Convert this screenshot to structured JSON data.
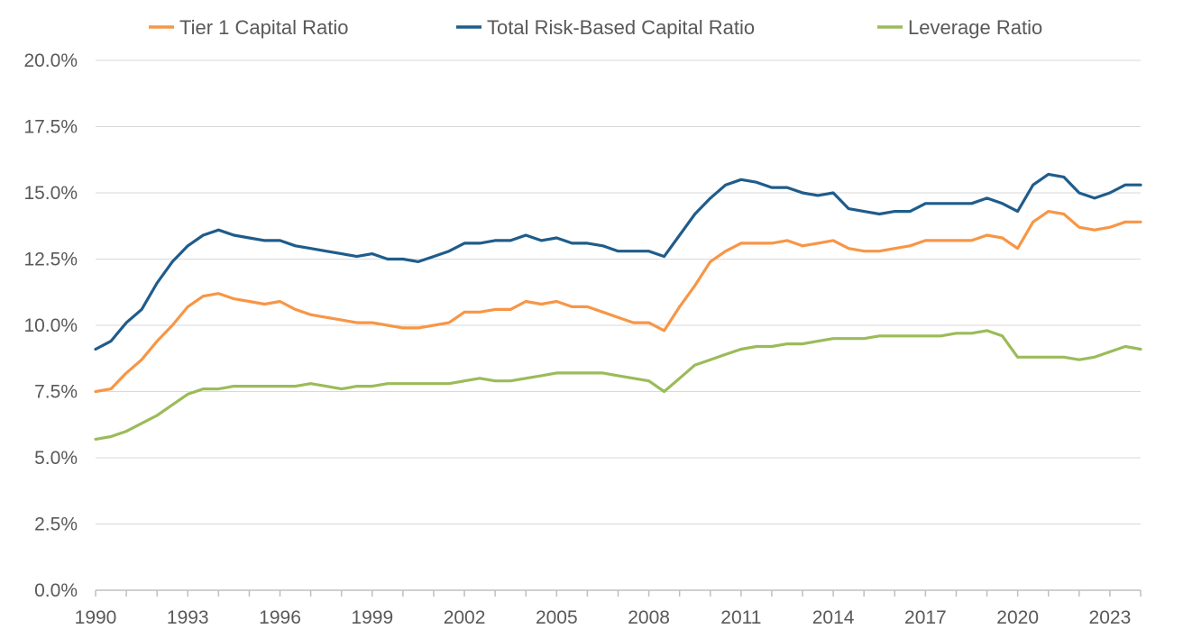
{
  "chart_data": {
    "type": "line",
    "title": "",
    "xlabel": "",
    "ylabel": "",
    "xlim": [
      1990,
      2024
    ],
    "ylim": [
      0,
      20
    ],
    "grid": true,
    "legend_position": "top",
    "y_ticks": [
      "0.0%",
      "2.5%",
      "5.0%",
      "7.5%",
      "10.0%",
      "12.5%",
      "15.0%",
      "17.5%",
      "20.0%"
    ],
    "y_tick_values": [
      0,
      2.5,
      5,
      7.5,
      10,
      12.5,
      15,
      17.5,
      20
    ],
    "x_ticks": [
      "1990",
      "1993",
      "1996",
      "1999",
      "2002",
      "2005",
      "2008",
      "2011",
      "2014",
      "2017",
      "2020",
      "2023"
    ],
    "x_tick_values": [
      1990,
      1993,
      1996,
      1999,
      2002,
      2005,
      2008,
      2011,
      2014,
      2017,
      2020,
      2023
    ],
    "series": [
      {
        "name": "Tier 1 Capital Ratio",
        "color": "#F79646",
        "x": [
          1990,
          1990.5,
          1991,
          1991.5,
          1992,
          1992.5,
          1993,
          1993.5,
          1994,
          1994.5,
          1995,
          1995.5,
          1996,
          1996.5,
          1997,
          1997.5,
          1998,
          1998.5,
          1999,
          1999.5,
          2000,
          2000.5,
          2001,
          2001.5,
          2002,
          2002.5,
          2003,
          2003.5,
          2004,
          2004.5,
          2005,
          2005.5,
          2006,
          2006.5,
          2007,
          2007.5,
          2008,
          2008.5,
          2009,
          2009.5,
          2010,
          2010.5,
          2011,
          2011.5,
          2012,
          2012.5,
          2013,
          2013.5,
          2014,
          2014.5,
          2015,
          2015.5,
          2016,
          2016.5,
          2017,
          2017.5,
          2018,
          2018.5,
          2019,
          2019.5,
          2020,
          2020.5,
          2021,
          2021.5,
          2022,
          2022.5,
          2023,
          2023.5,
          2024
        ],
        "values": [
          7.5,
          7.6,
          8.2,
          8.7,
          9.4,
          10.0,
          10.7,
          11.1,
          11.2,
          11.0,
          10.9,
          10.8,
          10.9,
          10.6,
          10.4,
          10.3,
          10.2,
          10.1,
          10.1,
          10.0,
          9.9,
          9.9,
          10.0,
          10.1,
          10.5,
          10.5,
          10.6,
          10.6,
          10.9,
          10.8,
          10.9,
          10.7,
          10.7,
          10.5,
          10.3,
          10.1,
          10.1,
          9.8,
          10.7,
          11.5,
          12.4,
          12.8,
          13.1,
          13.1,
          13.1,
          13.2,
          13.0,
          13.1,
          13.2,
          12.9,
          12.8,
          12.8,
          12.9,
          13.0,
          13.2,
          13.2,
          13.2,
          13.2,
          13.4,
          13.3,
          12.9,
          13.9,
          14.3,
          14.2,
          13.7,
          13.6,
          13.7,
          13.9,
          13.9
        ]
      },
      {
        "name": "Total Risk-Based Capital Ratio",
        "color": "#1F5C8B",
        "x": [
          1990,
          1990.5,
          1991,
          1991.5,
          1992,
          1992.5,
          1993,
          1993.5,
          1994,
          1994.5,
          1995,
          1995.5,
          1996,
          1996.5,
          1997,
          1997.5,
          1998,
          1998.5,
          1999,
          1999.5,
          2000,
          2000.5,
          2001,
          2001.5,
          2002,
          2002.5,
          2003,
          2003.5,
          2004,
          2004.5,
          2005,
          2005.5,
          2006,
          2006.5,
          2007,
          2007.5,
          2008,
          2008.5,
          2009,
          2009.5,
          2010,
          2010.5,
          2011,
          2011.5,
          2012,
          2012.5,
          2013,
          2013.5,
          2014,
          2014.5,
          2015,
          2015.5,
          2016,
          2016.5,
          2017,
          2017.5,
          2018,
          2018.5,
          2019,
          2019.5,
          2020,
          2020.5,
          2021,
          2021.5,
          2022,
          2022.5,
          2023,
          2023.5,
          2024
        ],
        "values": [
          9.1,
          9.4,
          10.1,
          10.6,
          11.6,
          12.4,
          13.0,
          13.4,
          13.6,
          13.4,
          13.3,
          13.2,
          13.2,
          13.0,
          12.9,
          12.8,
          12.7,
          12.6,
          12.7,
          12.5,
          12.5,
          12.4,
          12.6,
          12.8,
          13.1,
          13.1,
          13.2,
          13.2,
          13.4,
          13.2,
          13.3,
          13.1,
          13.1,
          13.0,
          12.8,
          12.8,
          12.8,
          12.6,
          13.4,
          14.2,
          14.8,
          15.3,
          15.5,
          15.4,
          15.2,
          15.2,
          15.0,
          14.9,
          15.0,
          14.4,
          14.3,
          14.2,
          14.3,
          14.3,
          14.6,
          14.6,
          14.6,
          14.6,
          14.8,
          14.6,
          14.3,
          15.3,
          15.7,
          15.6,
          15.0,
          14.8,
          15.0,
          15.3,
          15.3
        ]
      },
      {
        "name": "Leverage Ratio",
        "color": "#9BBB59",
        "x": [
          1990,
          1990.5,
          1991,
          1991.5,
          1992,
          1992.5,
          1993,
          1993.5,
          1994,
          1994.5,
          1995,
          1995.5,
          1996,
          1996.5,
          1997,
          1997.5,
          1998,
          1998.5,
          1999,
          1999.5,
          2000,
          2000.5,
          2001,
          2001.5,
          2002,
          2002.5,
          2003,
          2003.5,
          2004,
          2004.5,
          2005,
          2005.5,
          2006,
          2006.5,
          2007,
          2007.5,
          2008,
          2008.5,
          2009,
          2009.5,
          2010,
          2010.5,
          2011,
          2011.5,
          2012,
          2012.5,
          2013,
          2013.5,
          2014,
          2014.5,
          2015,
          2015.5,
          2016,
          2016.5,
          2017,
          2017.5,
          2018,
          2018.5,
          2019,
          2019.5,
          2020,
          2020.5,
          2021,
          2021.5,
          2022,
          2022.5,
          2023,
          2023.5,
          2024
        ],
        "values": [
          5.7,
          5.8,
          6.0,
          6.3,
          6.6,
          7.0,
          7.4,
          7.6,
          7.6,
          7.7,
          7.7,
          7.7,
          7.7,
          7.7,
          7.8,
          7.7,
          7.6,
          7.7,
          7.7,
          7.8,
          7.8,
          7.8,
          7.8,
          7.8,
          7.9,
          8.0,
          7.9,
          7.9,
          8.0,
          8.1,
          8.2,
          8.2,
          8.2,
          8.2,
          8.1,
          8.0,
          7.9,
          7.5,
          8.0,
          8.5,
          8.7,
          8.9,
          9.1,
          9.2,
          9.2,
          9.3,
          9.3,
          9.4,
          9.5,
          9.5,
          9.5,
          9.6,
          9.6,
          9.6,
          9.6,
          9.6,
          9.7,
          9.7,
          9.8,
          9.6,
          8.8,
          8.8,
          8.8,
          8.8,
          8.7,
          8.8,
          9.0,
          9.2,
          9.1
        ]
      }
    ]
  }
}
